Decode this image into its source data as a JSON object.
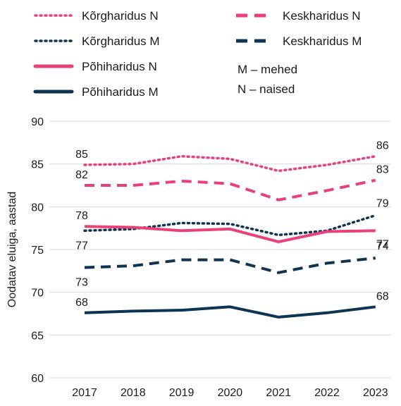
{
  "chart_data": {
    "type": "line",
    "ylabel": "Oodatav eluiga, aastad",
    "xlabel": "",
    "x": [
      "2017",
      "2018",
      "2019",
      "2020",
      "2021",
      "2022",
      "2023"
    ],
    "ylim": [
      60,
      90
    ],
    "yticks": [
      60,
      65,
      70,
      75,
      80,
      85,
      90
    ],
    "grid": "horizontal",
    "legend_placement": "top",
    "notes": [
      "M – mehed",
      "N – naised"
    ],
    "series": [
      {
        "name": "Kõrgharidus N",
        "color": "#e8417a",
        "dash": "dotted",
        "values": [
          84.9,
          85.0,
          85.9,
          85.6,
          84.2,
          84.9,
          85.9
        ],
        "labels": [
          "85",
          "",
          "",
          "",
          "",
          "",
          "86"
        ]
      },
      {
        "name": "Kõrgharidus M",
        "color": "#0d3453",
        "dash": "dotted",
        "values": [
          77.2,
          77.4,
          78.1,
          78.0,
          76.7,
          77.2,
          79.0
        ],
        "labels": [
          "77",
          "",
          "",
          "",
          "",
          "",
          "79"
        ]
      },
      {
        "name": "Põhiharidus N",
        "color": "#e8417a",
        "dash": "solid",
        "values": [
          77.7,
          77.6,
          77.2,
          77.4,
          75.9,
          77.1,
          77.2
        ],
        "labels": [
          "78",
          "",
          "",
          "",
          "",
          "",
          "77"
        ]
      },
      {
        "name": "Põhiharidus M",
        "color": "#0d3453",
        "dash": "solid",
        "values": [
          67.6,
          67.8,
          67.9,
          68.3,
          67.1,
          67.6,
          68.3
        ],
        "labels": [
          "68",
          "",
          "",
          "",
          "",
          "",
          "68"
        ]
      },
      {
        "name": "Keskharidus N",
        "color": "#e8417a",
        "dash": "dashed",
        "values": [
          82.5,
          82.5,
          83.0,
          82.7,
          80.8,
          81.9,
          83.1
        ],
        "labels": [
          "82",
          "",
          "",
          "",
          "",
          "",
          "83"
        ]
      },
      {
        "name": "Keskharidus M",
        "color": "#0d3453",
        "dash": "dashed",
        "values": [
          72.9,
          73.1,
          73.8,
          73.8,
          72.3,
          73.4,
          74.0
        ],
        "labels": [
          "73",
          "",
          "",
          "",
          "",
          "",
          "74"
        ]
      }
    ]
  }
}
